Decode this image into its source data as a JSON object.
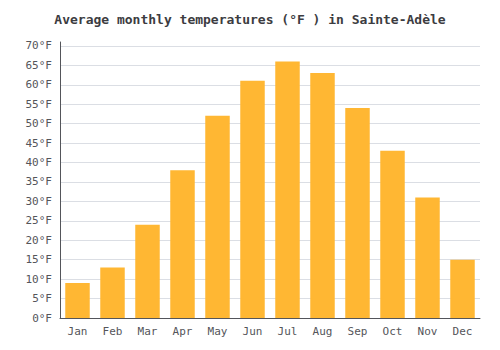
{
  "chart_data": {
    "type": "bar",
    "title": "Average monthly temperatures (°F ) in Sainte-Adèle",
    "categories": [
      "Jan",
      "Feb",
      "Mar",
      "Apr",
      "May",
      "Jun",
      "Jul",
      "Aug",
      "Sep",
      "Oct",
      "Nov",
      "Dec"
    ],
    "values": [
      9,
      13,
      24,
      38,
      52,
      61,
      66,
      63,
      54,
      43,
      31,
      15
    ],
    "color": "#FFB733",
    "ylim": [
      0,
      71
    ],
    "yticks": [
      {
        "value": 0,
        "label": "0°F"
      },
      {
        "value": 5,
        "label": "5°F"
      },
      {
        "value": 10,
        "label": "10°F"
      },
      {
        "value": 15,
        "label": "15°F"
      },
      {
        "value": 20,
        "label": "20°F"
      },
      {
        "value": 25,
        "label": "25°F"
      },
      {
        "value": 30,
        "label": "30°F"
      },
      {
        "value": 35,
        "label": "35°F"
      },
      {
        "value": 40,
        "label": "40°F"
      },
      {
        "value": 45,
        "label": "45°F"
      },
      {
        "value": 50,
        "label": "50°F"
      },
      {
        "value": 55,
        "label": "55°F"
      },
      {
        "value": 60,
        "label": "60°F"
      },
      {
        "value": 65,
        "label": "65°F"
      },
      {
        "value": 70,
        "label": "70°F"
      }
    ],
    "grid": true
  }
}
